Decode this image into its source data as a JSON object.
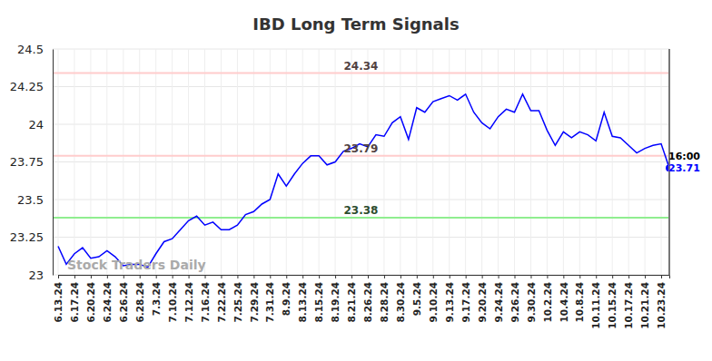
{
  "chart_data": {
    "type": "line",
    "title": "IBD Long Term Signals",
    "watermark": "Stock Traders Daily",
    "categories": [
      "6.13.24",
      null,
      "6.17.24",
      null,
      "6.20.24",
      null,
      "6.24.24",
      null,
      "6.26.24",
      null,
      "6.28.24",
      null,
      "7.3.24",
      null,
      "7.10.24",
      null,
      "7.12.24",
      null,
      "7.16.24",
      null,
      "7.22.24",
      null,
      "7.25.24",
      null,
      "7.29.24",
      null,
      "7.31.24",
      null,
      "8.9.24",
      null,
      "8.13.24",
      null,
      "8.15.24",
      null,
      "8.19.24",
      null,
      "8.21.24",
      null,
      "8.26.24",
      null,
      "8.28.24",
      null,
      "8.30.24",
      null,
      "9.5.24",
      null,
      "9.10.24",
      null,
      "9.13.24",
      null,
      "9.17.24",
      null,
      "9.20.24",
      null,
      "9.24.24",
      null,
      "9.26.24",
      null,
      "9.30.24",
      null,
      "10.2.24",
      null,
      "10.4.24",
      null,
      "10.8.24",
      null,
      "10.11.24",
      null,
      "10.15.24",
      null,
      "10.17.24",
      null,
      "10.21.24",
      null,
      "10.23.24",
      null
    ],
    "values": [
      23.19,
      23.07,
      23.14,
      23.18,
      23.11,
      23.12,
      23.16,
      23.12,
      23.06,
      23.07,
      23.07,
      23.05,
      23.14,
      23.22,
      23.24,
      23.3,
      23.36,
      23.39,
      23.33,
      23.35,
      23.3,
      23.3,
      23.33,
      23.4,
      23.42,
      23.47,
      23.5,
      23.67,
      23.59,
      23.67,
      23.74,
      23.79,
      23.79,
      23.73,
      23.75,
      23.82,
      23.84,
      23.87,
      23.85,
      23.93,
      23.92,
      24.01,
      24.05,
      23.9,
      24.11,
      24.08,
      24.15,
      24.17,
      24.19,
      24.16,
      24.2,
      24.08,
      24.01,
      23.97,
      24.05,
      24.1,
      24.08,
      24.2,
      24.09,
      24.09,
      23.96,
      23.86,
      23.95,
      23.91,
      23.95,
      23.93,
      23.89,
      24.08,
      23.92,
      23.91,
      23.86,
      23.81,
      23.84,
      23.86,
      23.87,
      23.71
    ],
    "color": "#0000ff",
    "ylim": [
      23,
      24.5
    ],
    "yticks": [
      23,
      23.25,
      23.5,
      23.75,
      24,
      24.25,
      24.5
    ],
    "grid": true,
    "reference_lines": [
      {
        "value": 24.34,
        "color": "#ffcccc"
      },
      {
        "value": 23.79,
        "color": "#ffcccc"
      },
      {
        "value": 23.38,
        "color": "#90ee90"
      }
    ],
    "last_point_time": "16:00"
  }
}
